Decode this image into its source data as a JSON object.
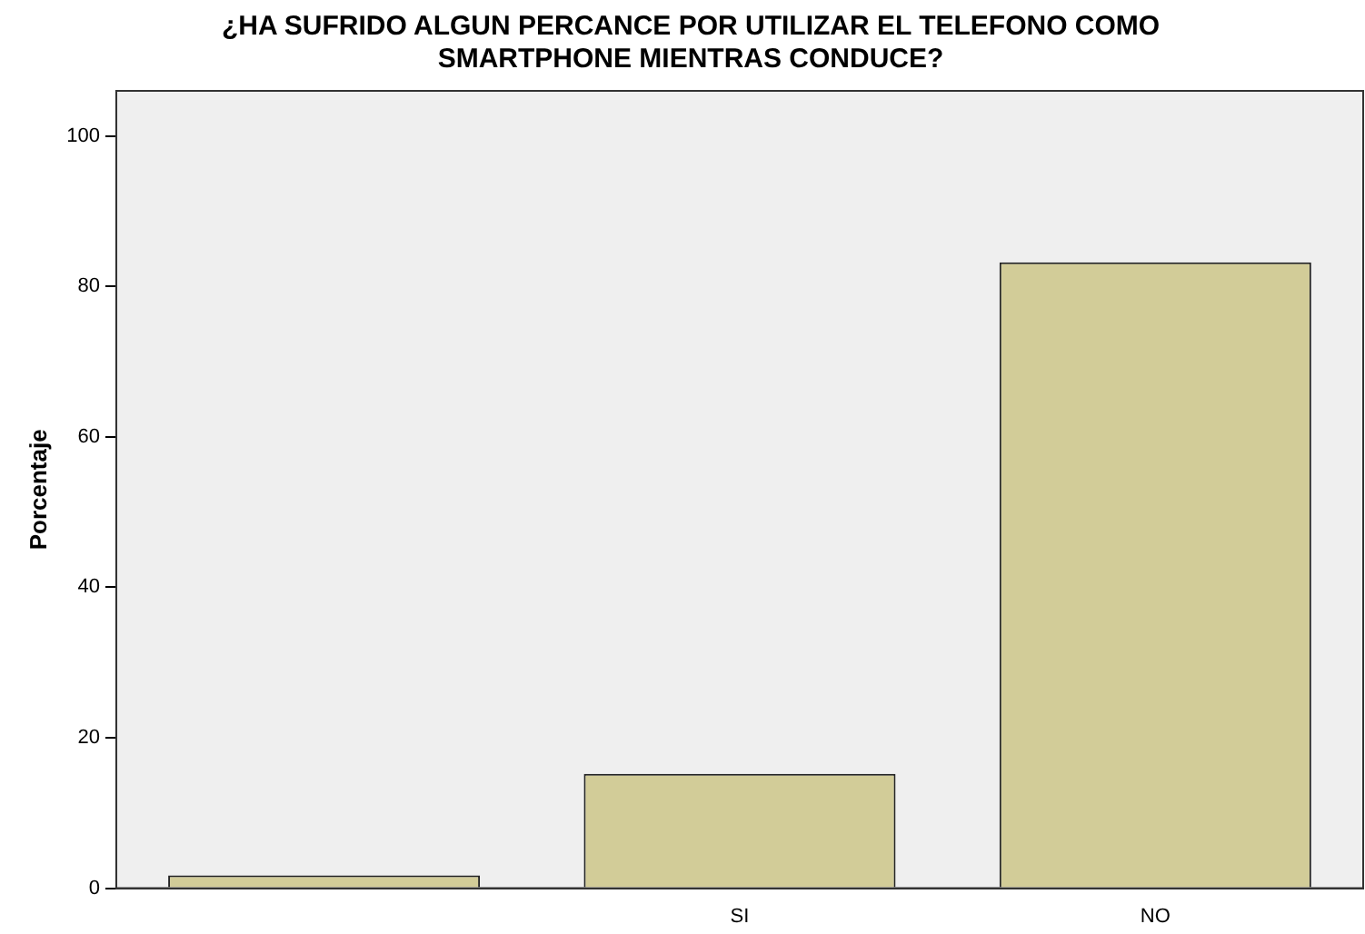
{
  "chart_data": {
    "type": "bar",
    "title": "¿HA SUFRIDO ALGUN PERCANCE POR UTILIZAR EL TELEFONO COMO\nSMARTPHONE MIENTRAS CONDUCE?",
    "ylabel": "Porcentaje",
    "categories": [
      null,
      "SI",
      "NO"
    ],
    "values": [
      1.7,
      15.2,
      83.2
    ],
    "color": "#d2cc98",
    "ylim": [
      0,
      106
    ],
    "yticks": [
      0,
      20,
      40,
      60,
      80,
      100
    ],
    "grid": false,
    "legend": false
  }
}
